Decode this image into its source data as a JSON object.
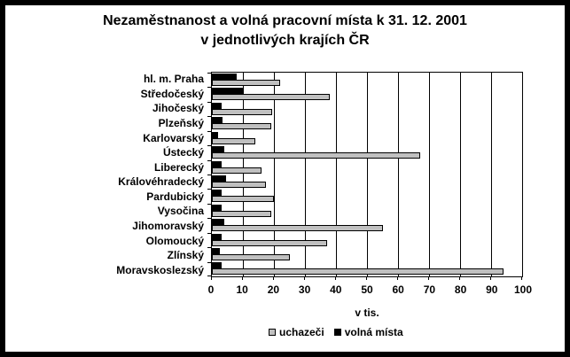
{
  "title": {
    "line1": "Nezaměstnanost a volná pracovní místa k 31. 12. 2001",
    "line2": "v jednotlivých krajích ČR"
  },
  "chart_data": {
    "type": "bar",
    "orientation": "horizontal",
    "title": "Nezaměstnanost a volná pracovní místa k 31. 12. 2001 v jednotlivých krajích ČR",
    "xlabel": "v tis.",
    "ylabel": "",
    "xlim": [
      0,
      100
    ],
    "x_ticks": [
      0,
      10,
      20,
      30,
      40,
      50,
      60,
      70,
      80,
      90,
      100
    ],
    "grid": true,
    "legend_position": "bottom",
    "categories": [
      "hl. m. Praha",
      "Středočeský",
      "Jihočeský",
      "Plzeňský",
      "Karlovarský",
      "Ústecký",
      "Liberecký",
      "Královéhradecký",
      "Pardubický",
      "Vysočina",
      "Jihomoravský",
      "Olomoucký",
      "Zlínský",
      "Moravskoslezský"
    ],
    "series": [
      {
        "name": "uchazeči",
        "color": "#C0C0C0",
        "values": [
          22,
          38,
          19.5,
          19,
          14,
          67,
          16,
          17.5,
          20,
          19,
          55,
          37,
          25,
          94
        ]
      },
      {
        "name": "volná místa",
        "color": "#000000",
        "values": [
          8,
          10,
          3,
          3.5,
          2,
          4,
          3,
          4.5,
          3,
          3,
          4,
          3,
          2.5,
          3
        ]
      }
    ]
  },
  "colors": {
    "background": "#FFFFFF",
    "frame": "#000000",
    "gridline": "#000000",
    "text": "#000000",
    "bar_uchazeci": "#C0C0C0",
    "bar_volna_mista": "#000000"
  }
}
